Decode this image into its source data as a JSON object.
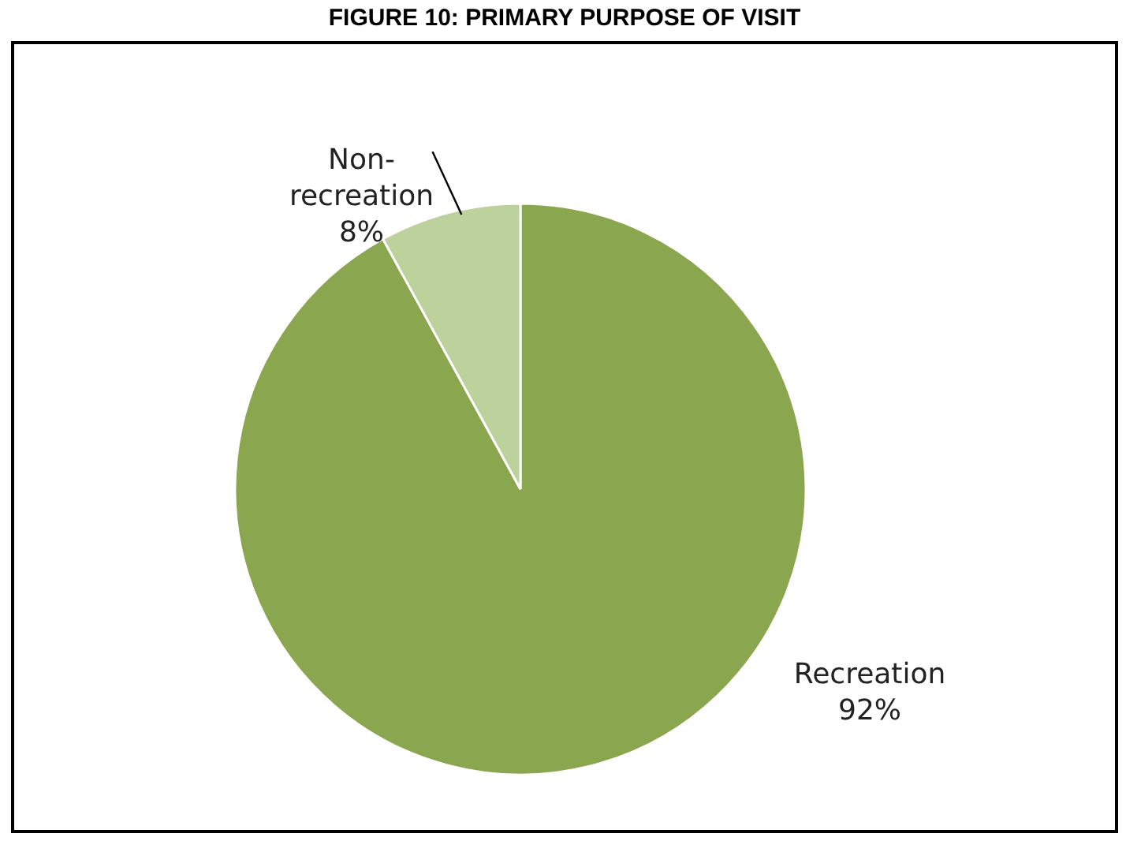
{
  "chart_data": {
    "type": "pie",
    "title": "FIGURE 10: PRIMARY PURPOSE OF VISIT",
    "categories": [
      "Recreation",
      "Non-recreation"
    ],
    "values": [
      92,
      8
    ],
    "colors": [
      "#8aa64f",
      "#bcd19b"
    ],
    "value_labels": [
      "92%",
      "8%"
    ],
    "legend": false
  }
}
